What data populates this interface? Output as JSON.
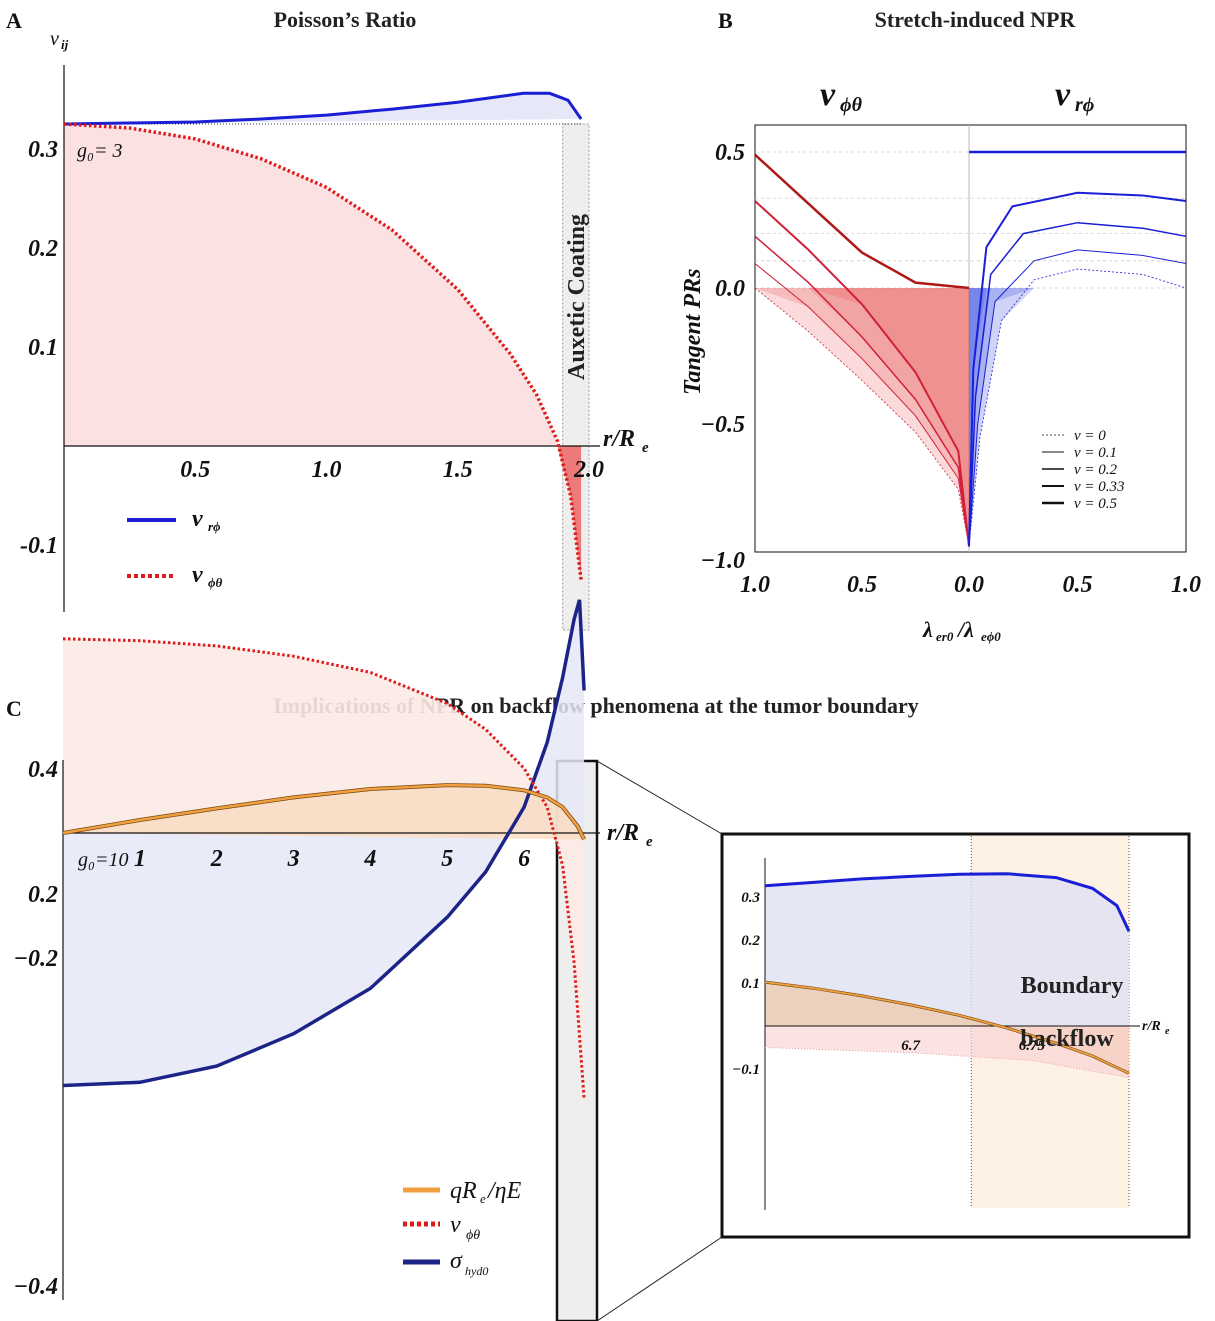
{
  "panels": {
    "A": {
      "letter": "A",
      "title": "Poisson’s Ratio"
    },
    "B": {
      "letter": "B",
      "title": "Stretch-induced NPR"
    },
    "C": {
      "letter": "C",
      "title": "Implications of NPR on backflow phenomena at the tumor boundary"
    }
  },
  "colors": {
    "blue": "#1a1fd6",
    "red": "#e01b1b",
    "darkred": "#b01818",
    "navy": "#1c2487",
    "orange": "#f0a040",
    "pink_fill": "#fbe1e1",
    "blue_fill": "#e6e8f8"
  },
  "chart_data": [
    {
      "id": "A",
      "type": "line",
      "title": "Poisson’s Ratio",
      "ylabel": "ν_ij",
      "xlabel": "r/R_e",
      "xlim": [
        0,
        2.0
      ],
      "ylim": [
        -0.15,
        0.38
      ],
      "xticks": [
        "0.5",
        "1.0",
        "1.5",
        "2.0"
      ],
      "yticks": [
        "0.3",
        "0.2",
        "0.1",
        "-0.1"
      ],
      "annotation": "g₀= 3",
      "region_label": "Auxetic Coating",
      "region_x": [
        1.9,
        2.0
      ],
      "series": [
        {
          "name": "ν_rϕ",
          "style": "solid",
          "color": "#1a1fd6",
          "x": [
            0,
            0.25,
            0.5,
            0.75,
            1.0,
            1.25,
            1.5,
            1.75,
            1.85,
            1.92,
            1.97
          ],
          "y": [
            0.325,
            0.326,
            0.327,
            0.33,
            0.334,
            0.34,
            0.347,
            0.356,
            0.356,
            0.349,
            0.33
          ]
        },
        {
          "name": "ν_ϕθ",
          "style": "dotted",
          "color": "#e01b1b",
          "x": [
            0,
            0.25,
            0.5,
            0.75,
            1.0,
            1.25,
            1.5,
            1.7,
            1.8,
            1.88,
            1.93,
            1.97
          ],
          "y": [
            0.325,
            0.321,
            0.31,
            0.29,
            0.261,
            0.218,
            0.158,
            0.093,
            0.052,
            0.005,
            -0.05,
            -0.135
          ]
        }
      ]
    },
    {
      "id": "B",
      "type": "line",
      "title": "Stretch-induced NPR",
      "ylabel": "Tangent PRs",
      "xlabel": "λ_er0/λ_eϕ0",
      "left_header": "ν_ϕθ",
      "right_header": "ν_rϕ",
      "ylim": [
        -1.0,
        0.6
      ],
      "xticks": [
        "1.0",
        "0.5",
        "0.0",
        "0.5",
        "1.0"
      ],
      "yticks": [
        "0.5",
        "0.0",
        "-0.5",
        "-1.0"
      ],
      "legend": [
        "ν = 0",
        "ν = 0.1",
        "ν = 0.2",
        "ν = 0.33",
        "ν = 0.5"
      ],
      "series_left": [
        {
          "nu": 0.5,
          "x": [
            1.0,
            0.75,
            0.5,
            0.25,
            0.0
          ],
          "y": [
            0.49,
            0.31,
            0.13,
            0.02,
            0.0
          ]
        },
        {
          "nu": 0.33,
          "x": [
            1.0,
            0.75,
            0.5,
            0.25,
            0.05,
            0.0
          ],
          "y": [
            0.32,
            0.14,
            -0.06,
            -0.31,
            -0.6,
            -0.95
          ]
        },
        {
          "nu": 0.2,
          "x": [
            1.0,
            0.75,
            0.5,
            0.25,
            0.05,
            0.0
          ],
          "y": [
            0.19,
            0.02,
            -0.18,
            -0.41,
            -0.66,
            -0.95
          ]
        },
        {
          "nu": 0.1,
          "x": [
            1.0,
            0.75,
            0.5,
            0.25,
            0.05,
            0.0
          ],
          "y": [
            0.09,
            -0.07,
            -0.26,
            -0.47,
            -0.7,
            -0.95
          ]
        },
        {
          "nu": 0,
          "x": [
            1.0,
            0.75,
            0.5,
            0.25,
            0.05,
            0.0
          ],
          "y": [
            -0.0,
            -0.16,
            -0.34,
            -0.53,
            -0.74,
            -0.95
          ]
        }
      ],
      "series_right": [
        {
          "nu": 0.5,
          "x": [
            0.0,
            1.0
          ],
          "y": [
            0.5,
            0.5
          ]
        },
        {
          "nu": 0.33,
          "x": [
            0.0,
            0.02,
            0.08,
            0.2,
            0.5,
            0.8,
            1.0
          ],
          "y": [
            -0.95,
            -0.3,
            0.15,
            0.3,
            0.35,
            0.34,
            0.32
          ]
        },
        {
          "nu": 0.2,
          "x": [
            0.0,
            0.03,
            0.1,
            0.25,
            0.5,
            0.8,
            1.0
          ],
          "y": [
            -0.95,
            -0.4,
            0.05,
            0.2,
            0.24,
            0.22,
            0.19
          ]
        },
        {
          "nu": 0.1,
          "x": [
            0.0,
            0.04,
            0.12,
            0.3,
            0.5,
            0.8,
            1.0
          ],
          "y": [
            -0.95,
            -0.5,
            -0.05,
            0.1,
            0.14,
            0.12,
            0.09
          ]
        },
        {
          "nu": 0,
          "x": [
            0.0,
            0.05,
            0.15,
            0.3,
            0.5,
            0.8,
            1.0
          ],
          "y": [
            -0.95,
            -0.55,
            -0.12,
            0.03,
            0.07,
            0.05,
            0.0
          ]
        }
      ]
    },
    {
      "id": "C",
      "type": "line",
      "title": "Implications of NPR on backflow phenomena at the tumor boundary",
      "xlabel": "r/R_e",
      "xlim": [
        0,
        6.8
      ],
      "ylim": [
        -0.42,
        0.42
      ],
      "xticks": [
        "1",
        "2",
        "3",
        "4",
        "5",
        "6"
      ],
      "yticks": [
        "0.4",
        "0.2",
        "-0.2",
        "-0.4"
      ],
      "annotation": "g₀=10",
      "series": [
        {
          "name": "qR_e/ηE",
          "color": "#f0a040",
          "style": "solid",
          "x": [
            0,
            1,
            2,
            3,
            4,
            5,
            5.5,
            6,
            6.3,
            6.5,
            6.7,
            6.78
          ],
          "y": [
            0.0,
            0.02,
            0.038,
            0.055,
            0.068,
            0.074,
            0.073,
            0.066,
            0.055,
            0.04,
            0.01,
            -0.01
          ]
        },
        {
          "name": "ν_ϕθ",
          "color": "#e01b1b",
          "style": "dotted",
          "x": [
            0,
            1,
            2,
            3,
            4,
            5,
            5.5,
            6,
            6.3,
            6.5,
            6.65,
            6.78
          ],
          "y": [
            0.3,
            0.297,
            0.289,
            0.273,
            0.248,
            0.2,
            0.16,
            0.1,
            0.04,
            -0.05,
            -0.2,
            -0.41
          ]
        },
        {
          "name": "σ_hyd0",
          "color": "#1c2487",
          "style": "solid",
          "x": [
            0,
            1,
            2,
            3,
            4,
            5,
            5.5,
            6,
            6.3,
            6.5,
            6.65,
            6.72,
            6.78
          ],
          "y": [
            -0.39,
            -0.385,
            -0.36,
            -0.31,
            -0.24,
            -0.13,
            -0.06,
            0.04,
            0.14,
            0.24,
            0.33,
            0.36,
            0.22
          ]
        }
      ],
      "inset": {
        "xlabel": "r/R_e",
        "xlim": [
          6.64,
          6.795
        ],
        "ylim": [
          -0.13,
          0.37
        ],
        "xticks": [
          "6.7",
          "6.75"
        ],
        "yticks": [
          "0.3",
          "0.2",
          "0.1",
          "-0.1"
        ],
        "region_label_1": "Boundary",
        "region_label_2": "backflow",
        "region_x": [
          6.725,
          6.79
        ],
        "series": [
          {
            "name": "σ_hyd0",
            "x": [
              6.64,
              6.66,
              6.68,
              6.7,
              6.72,
              6.74,
              6.76,
              6.775,
              6.785,
              6.79
            ],
            "y": [
              0.326,
              0.334,
              0.342,
              0.348,
              0.353,
              0.354,
              0.345,
              0.32,
              0.28,
              0.22
            ]
          },
          {
            "name": "qR_e/ηE",
            "x": [
              6.64,
              6.66,
              6.68,
              6.7,
              6.72,
              6.74,
              6.76,
              6.775,
              6.79
            ],
            "y": [
              0.102,
              0.088,
              0.07,
              0.049,
              0.025,
              -0.005,
              -0.04,
              -0.07,
              -0.11
            ]
          },
          {
            "name": "ν_ϕθ",
            "x": [
              6.64,
              6.7,
              6.75,
              6.79
            ],
            "y": [
              -0.05,
              -0.062,
              -0.08,
              -0.12
            ]
          }
        ]
      }
    }
  ]
}
